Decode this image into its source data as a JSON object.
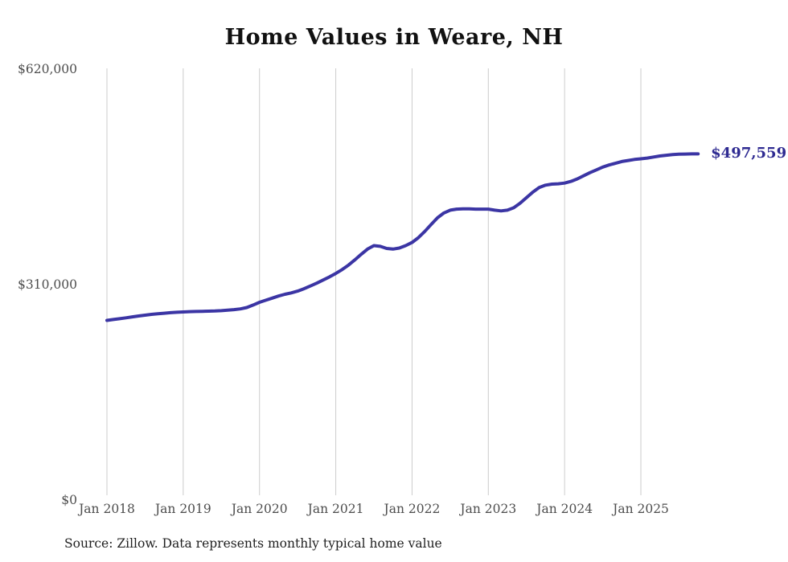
{
  "page": {
    "background_color": "#ffffff"
  },
  "chart_data": {
    "type": "line",
    "title": "Home Values in Weare, NH",
    "source_note": "Source: Zillow. Data represents monthly typical home value",
    "end_label": "$497,559",
    "end_value": 497559,
    "line_color": "#3b35a4",
    "end_label_color": "#2e2a91",
    "grid_color": "#cccccc",
    "axis_label_color": "#4d4d4d",
    "grid": "vertical-only",
    "legend": "none",
    "xlabel": "",
    "ylabel": "",
    "ylim": [
      0,
      620000
    ],
    "x_start": "2018-01",
    "x_end": "2025-10",
    "x_ticks": [
      "Jan 2018",
      "Jan 2019",
      "Jan 2020",
      "Jan 2021",
      "Jan 2022",
      "Jan 2023",
      "Jan 2024",
      "Jan 2025"
    ],
    "y_ticks": [
      {
        "value": 0,
        "label": "$0"
      },
      {
        "value": 310000,
        "label": "$310,000"
      },
      {
        "value": 620000,
        "label": "$620,000"
      }
    ],
    "series": [
      {
        "name": "Monthly typical home value",
        "monthly_values": [
          258000,
          259200,
          260400,
          261700,
          263000,
          264300,
          265500,
          266600,
          267500,
          268300,
          269000,
          269600,
          270100,
          270500,
          270800,
          271000,
          271200,
          271500,
          272000,
          272600,
          273400,
          274500,
          276500,
          280000,
          284000,
          287000,
          290000,
          293000,
          295500,
          297500,
          300000,
          303500,
          307500,
          311500,
          316000,
          320500,
          325500,
          331000,
          337500,
          345000,
          353000,
          360500,
          365500,
          364500,
          361500,
          360500,
          362000,
          365500,
          370000,
          377000,
          386000,
          396000,
          405500,
          412500,
          416500,
          418000,
          418500,
          418500,
          418000,
          418000,
          418000,
          416500,
          415500,
          416500,
          420000,
          426500,
          434500,
          442500,
          449000,
          452500,
          454000,
          454500,
          455500,
          458000,
          461500,
          466000,
          470500,
          474500,
          478500,
          481500,
          484000,
          486500,
          488000,
          489500,
          490500,
          491500,
          493000,
          494500,
          495500,
          496500,
          497000,
          497300,
          497500,
          497559
        ]
      }
    ]
  }
}
